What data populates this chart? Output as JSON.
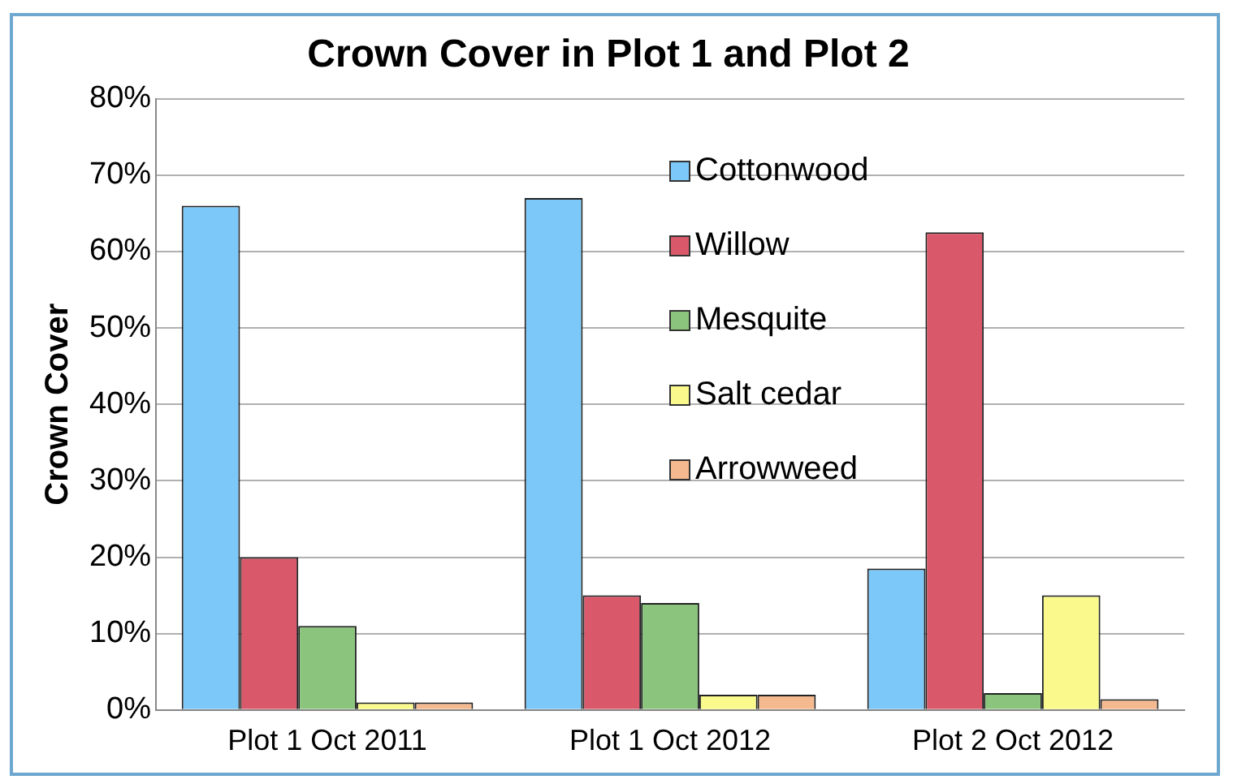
{
  "chart_data": {
    "type": "bar",
    "title": "Crown Cover in Plot 1 and Plot 2",
    "ylabel": "Crown Cover",
    "categories": [
      "Plot 1 Oct 2011",
      "Plot 1 Oct 2012",
      "Plot 2 Oct 2012"
    ],
    "series": [
      {
        "name": "Cottonwood",
        "color": "#7cc8f8",
        "values": [
          66,
          67,
          18.5
        ]
      },
      {
        "name": "Willow",
        "color": "#d9586a",
        "values": [
          20,
          15,
          62.5
        ]
      },
      {
        "name": "Mesquite",
        "color": "#8bc57d",
        "values": [
          11,
          14,
          2.2
        ]
      },
      {
        "name": "Salt cedar",
        "color": "#fafa8c",
        "values": [
          1,
          2,
          15
        ]
      },
      {
        "name": "Arrowweed",
        "color": "#f4b98f",
        "values": [
          1,
          2,
          1.4
        ]
      }
    ],
    "ylim": [
      0,
      80
    ],
    "yticks": [
      {
        "value": 0,
        "label": "0%"
      },
      {
        "value": 10,
        "label": "10%"
      },
      {
        "value": 20,
        "label": "20%"
      },
      {
        "value": 30,
        "label": "30%"
      },
      {
        "value": 40,
        "label": "40%"
      },
      {
        "value": 50,
        "label": "50%"
      },
      {
        "value": 60,
        "label": "60%"
      },
      {
        "value": 70,
        "label": "70%"
      },
      {
        "value": 80,
        "label": "80%"
      }
    ],
    "grid": "y",
    "legend": "top"
  }
}
